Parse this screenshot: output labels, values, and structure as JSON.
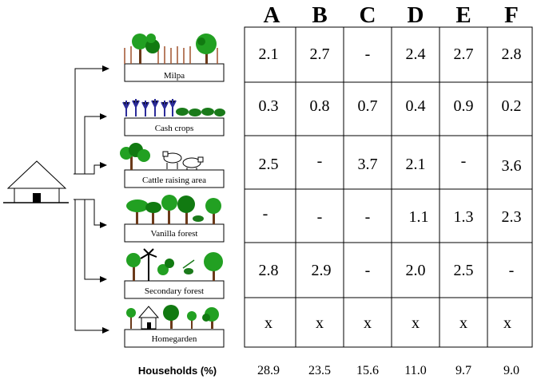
{
  "columns": [
    "A",
    "B",
    "C",
    "D",
    "E",
    "F"
  ],
  "land_uses": [
    {
      "label": "Milpa",
      "icon": "milpa-icon",
      "values": [
        "2.1",
        "2.7",
        "-",
        "2.4",
        "2.7",
        "2.8"
      ]
    },
    {
      "label": "Cash crops",
      "icon": "cash-crops-icon",
      "values": [
        "0.3",
        "0.8",
        "0.7",
        "0.4",
        "0.9",
        "0.2"
      ]
    },
    {
      "label": "Cattle raising area",
      "icon": "cattle-icon",
      "values": [
        "2.5",
        "-",
        "3.7",
        "2.1",
        "-",
        "3.6"
      ]
    },
    {
      "label": "Vanilla forest",
      "icon": "vanilla-forest-icon",
      "values": [
        "-",
        "-",
        "-",
        "1.1",
        "1.3",
        "2.3"
      ]
    },
    {
      "label": "Secondary forest",
      "icon": "secondary-forest-icon",
      "values": [
        "2.8",
        "2.9",
        "-",
        "2.0",
        "2.5",
        "-"
      ]
    },
    {
      "label": "Homegarden",
      "icon": "homegarden-icon",
      "values": [
        "x",
        "x",
        "x",
        "x",
        "x",
        "x"
      ]
    }
  ],
  "households": {
    "label": "Households  (%)",
    "values": [
      "28.9",
      "23.5",
      "15.6",
      "11.0",
      "9.7",
      "9.0"
    ]
  }
}
